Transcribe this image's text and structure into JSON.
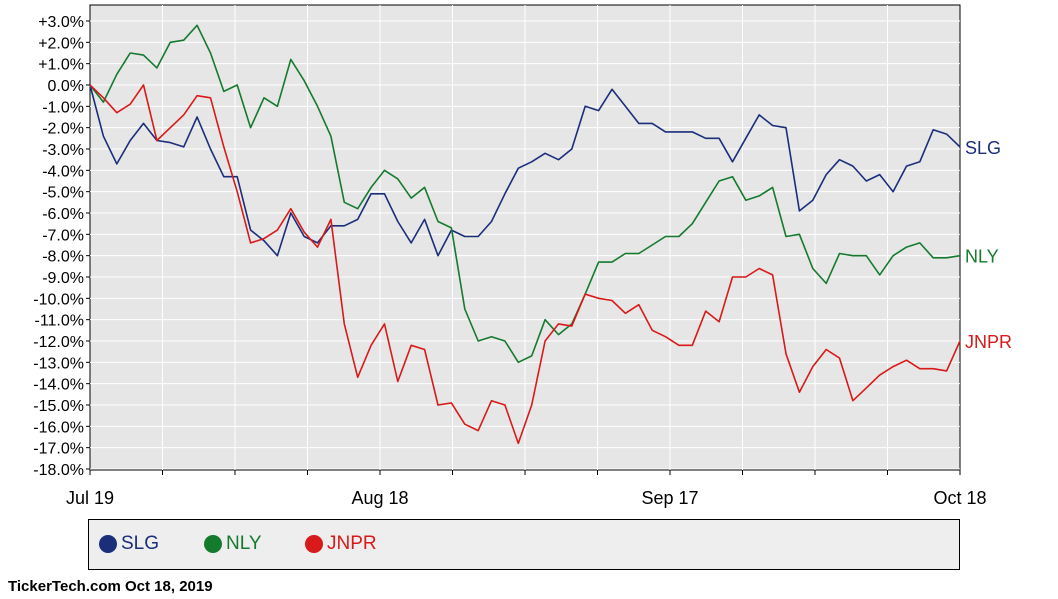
{
  "chart_data": {
    "type": "line",
    "title": "",
    "xlabel": "",
    "ylabel": "",
    "x_tick_labels": [
      "Jul 19",
      "Aug 18",
      "Sep 17",
      "Oct 18"
    ],
    "x_range": [
      "2019-07-19",
      "2019-10-18"
    ],
    "y_tick_labels": [
      "+3.0%",
      "+2.0%",
      "+1.0%",
      "0.0%",
      "-1.0%",
      "-2.0%",
      "-3.0%",
      "-4.0%",
      "-5.0%",
      "-6.0%",
      "-7.0%",
      "-8.0%",
      "-9.0%",
      "-10.0%",
      "-11.0%",
      "-12.0%",
      "-13.0%",
      "-14.0%",
      "-15.0%",
      "-16.0%",
      "-17.0%",
      "-18.0%"
    ],
    "ylim": [
      -18,
      3
    ],
    "grid": true,
    "series": [
      {
        "name": "SLG",
        "color": "#1a2e7a",
        "values": [
          0,
          -2.4,
          -3.7,
          -2.6,
          -1.8,
          -2.6,
          -2.7,
          -2.9,
          -1.5,
          -3.0,
          -4.3,
          -4.3,
          -6.8,
          -7.3,
          -8.0,
          -6.0,
          -7.1,
          -7.4,
          -6.6,
          -6.6,
          -6.3,
          -5.1,
          -5.1,
          -6.4,
          -7.4,
          -6.3,
          -8.0,
          -6.8,
          -7.1,
          -7.1,
          -6.4,
          -5.1,
          -3.9,
          -3.6,
          -3.2,
          -3.5,
          -3.0,
          -1.0,
          -1.2,
          -0.2,
          -1.0,
          -1.8,
          -1.8,
          -2.2,
          -2.2,
          -2.2,
          -2.5,
          -2.5,
          -3.6,
          -2.5,
          -1.4,
          -1.9,
          -2.0,
          -5.9,
          -5.4,
          -4.2,
          -3.5,
          -3.8,
          -4.5,
          -4.2,
          -5.0,
          -3.8,
          -3.6,
          -2.1,
          -2.3,
          -2.9
        ]
      },
      {
        "name": "NLY",
        "color": "#157a2e",
        "values": [
          0,
          -0.8,
          0.5,
          1.5,
          1.4,
          0.8,
          2.0,
          2.1,
          2.8,
          1.5,
          -0.3,
          0.0,
          -2.0,
          -0.6,
          -1.0,
          1.2,
          0.2,
          -1.0,
          -2.4,
          -5.5,
          -5.8,
          -4.8,
          -4.0,
          -4.4,
          -5.3,
          -4.8,
          -6.4,
          -6.7,
          -10.5,
          -12.0,
          -11.8,
          -12.0,
          -13.0,
          -12.7,
          -11.0,
          -11.7,
          -11.2,
          -9.8,
          -8.3,
          -8.3,
          -7.9,
          -7.9,
          -7.5,
          -7.1,
          -7.1,
          -6.5,
          -5.5,
          -4.5,
          -4.3,
          -5.4,
          -5.2,
          -4.8,
          -7.1,
          -7.0,
          -8.6,
          -9.3,
          -7.9,
          -8.0,
          -8.0,
          -8.9,
          -8.0,
          -7.6,
          -7.4,
          -8.1,
          -8.1,
          -8.0
        ]
      },
      {
        "name": "JNPR",
        "color": "#d81a1a",
        "values": [
          0,
          -0.6,
          -1.3,
          -0.9,
          0.0,
          -2.6,
          -2.0,
          -1.4,
          -0.5,
          -0.6,
          -2.9,
          -5.0,
          -7.4,
          -7.2,
          -6.8,
          -5.8,
          -6.9,
          -7.6,
          -6.3,
          -11.2,
          -13.7,
          -12.2,
          -11.2,
          -13.9,
          -12.2,
          -12.4,
          -15.0,
          -14.9,
          -15.9,
          -16.2,
          -14.8,
          -15.0,
          -16.8,
          -15.0,
          -12.0,
          -11.2,
          -11.3,
          -9.8,
          -10.0,
          -10.1,
          -10.7,
          -10.3,
          -11.5,
          -11.8,
          -12.2,
          -12.2,
          -10.6,
          -11.1,
          -9.0,
          -9.0,
          -8.6,
          -8.9,
          -12.6,
          -14.4,
          -13.2,
          -12.4,
          -12.8,
          -14.8,
          -14.2,
          -13.6,
          -13.2,
          -12.9,
          -13.3,
          -13.3,
          -13.4,
          -12.0
        ]
      }
    ],
    "legend": [
      "SLG",
      "NLY",
      "JNPR"
    ],
    "legend_placement": "bottom"
  },
  "footer": {
    "credit": "TickerTech.com  Oct 18, 2019"
  }
}
